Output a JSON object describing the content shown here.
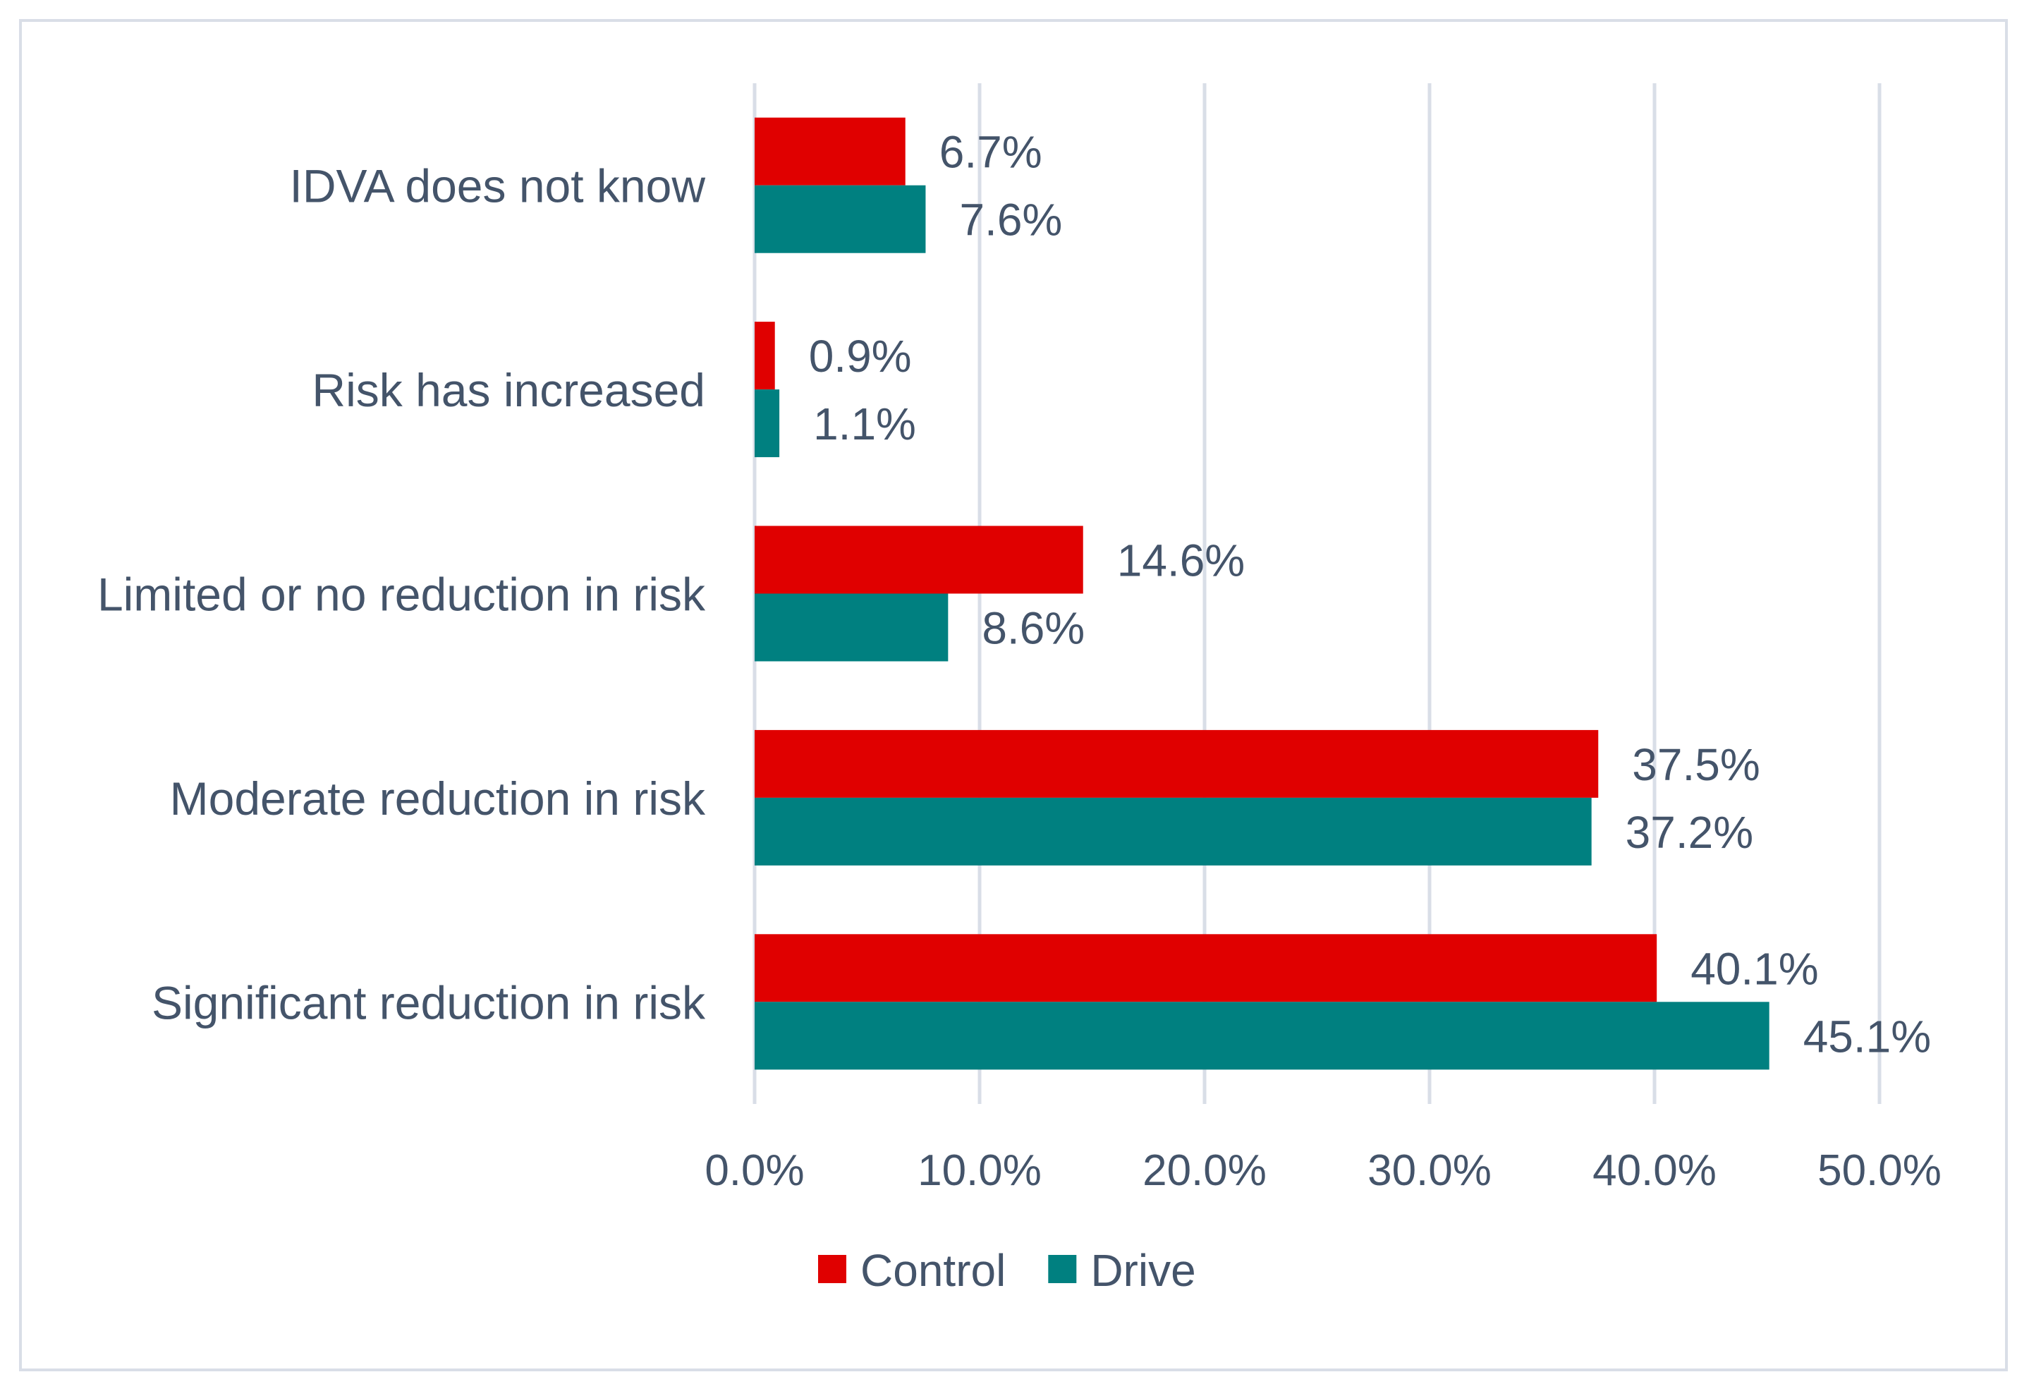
{
  "chart_data": {
    "type": "bar",
    "orientation": "horizontal",
    "categories": [
      "IDVA does not know",
      "Risk has increased",
      "Limited or no reduction in risk",
      "Moderate reduction in risk",
      "Significant reduction in risk"
    ],
    "series": [
      {
        "name": "Control",
        "color": "#e00000",
        "values": [
          6.7,
          0.9,
          14.6,
          37.5,
          40.1
        ],
        "labels": [
          "6.7%",
          "0.9%",
          "14.6%",
          "37.5%",
          "40.1%"
        ]
      },
      {
        "name": "Drive",
        "color": "#008080",
        "values": [
          7.6,
          1.1,
          8.6,
          37.2,
          45.1
        ],
        "labels": [
          "7.6%",
          "1.1%",
          "8.6%",
          "37.2%",
          "45.1%"
        ]
      }
    ],
    "xlim": [
      0,
      50
    ],
    "xticks": [
      0,
      10,
      20,
      30,
      40,
      50
    ],
    "xtick_labels": [
      "0.0%",
      "10.0%",
      "20.0%",
      "30.0%",
      "40.0%",
      "50.0%"
    ],
    "grid": "vertical",
    "legend": "bottom",
    "title": "",
    "xlabel": "",
    "ylabel": ""
  }
}
